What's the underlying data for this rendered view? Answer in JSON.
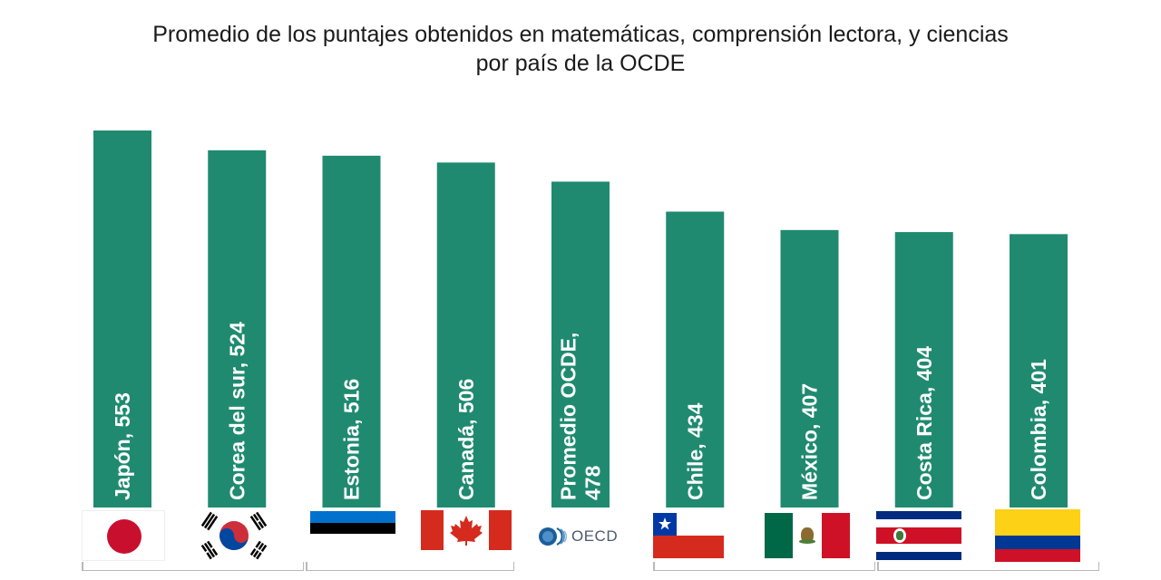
{
  "title": {
    "line1": "Promedio de los puntajes obtenidos en matemáticas, comprensión lectora, y ciencias",
    "line2": "por país de la OCDE"
  },
  "colors": {
    "bar": "#1f8a70",
    "background": "#ffffff"
  },
  "chart_data": {
    "type": "bar",
    "title": "Promedio de los puntajes obtenidos en matemáticas, comprensión lectora, y ciencias por país de la OCDE",
    "categories": [
      "Japón",
      "Corea del sur",
      "Estonia",
      "Canadá",
      "Promedio OCDE",
      "Chile",
      "México",
      "Costa Rica",
      "Colombia"
    ],
    "values": [
      553,
      524,
      516,
      506,
      478,
      434,
      407,
      404,
      401
    ],
    "labels": [
      [
        "Japón, 553"
      ],
      [
        "Corea del sur, 524"
      ],
      [
        "Estonia, 516"
      ],
      [
        "Canadá, 506"
      ],
      [
        "Promedio OCDE,",
        "478"
      ],
      [
        "Chile, 434"
      ],
      [
        "México, 407"
      ],
      [
        "Costa Rica, 404"
      ],
      [
        "Colombia, 401"
      ]
    ],
    "xlabel": "",
    "ylabel": "",
    "grid": false,
    "legend": "none"
  },
  "flags": [
    "japan-flag-icon",
    "south-korea-flag-icon",
    "estonia-flag-icon",
    "canada-flag-icon",
    "oecd-logo-icon",
    "chile-flag-icon",
    "mexico-flag-icon",
    "costa-rica-flag-icon",
    "colombia-flag-icon"
  ],
  "oecd_logo_text": "OECD"
}
